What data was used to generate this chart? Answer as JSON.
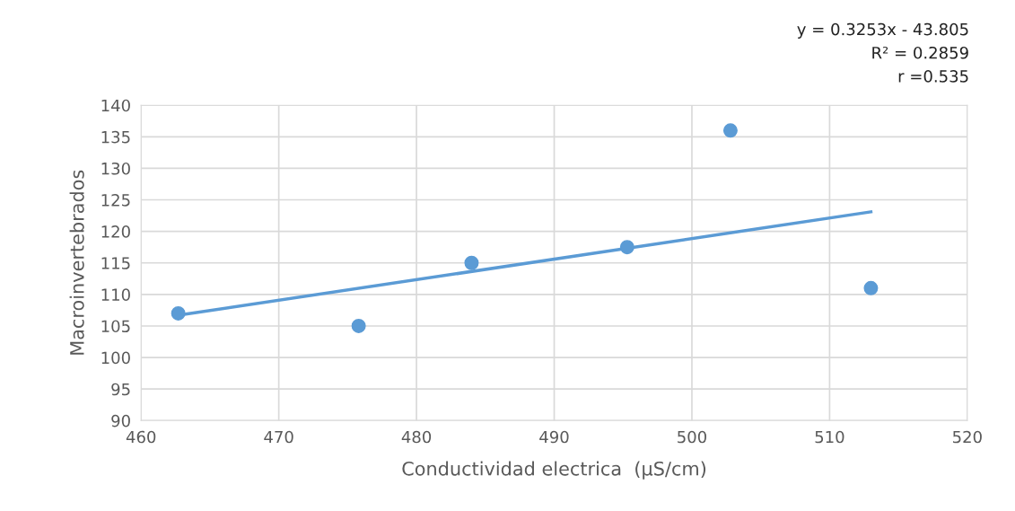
{
  "chart_data": {
    "type": "scatter",
    "xlabel": "Conductividad electrica  (µS/cm)",
    "ylabel": "Macroinvertebrados",
    "annotations": [
      "y = 0.3253x - 43.805",
      "R² = 0.2859",
      "r =0.535"
    ],
    "series": [
      {
        "color": "#5b9bd5",
        "x": [
          462.7,
          475.8,
          484.0,
          495.3,
          502.8,
          513.0
        ],
        "values": [
          107,
          105,
          115,
          117.5,
          136,
          111
        ],
        "marker": "circle"
      },
      {
        "type": "line",
        "color": "#5b9bd5",
        "x": [
          462.7,
          513.0
        ],
        "values": [
          106.7,
          123.1
        ],
        "line_style": "solid"
      }
    ],
    "xlim": [
      460,
      520
    ],
    "xticks": [
      460,
      470,
      480,
      490,
      500,
      510,
      520
    ],
    "ylim": [
      90,
      140
    ],
    "yticks": [
      90,
      95,
      100,
      105,
      110,
      115,
      120,
      125,
      130,
      135,
      140
    ],
    "grid": true,
    "legend": false
  }
}
